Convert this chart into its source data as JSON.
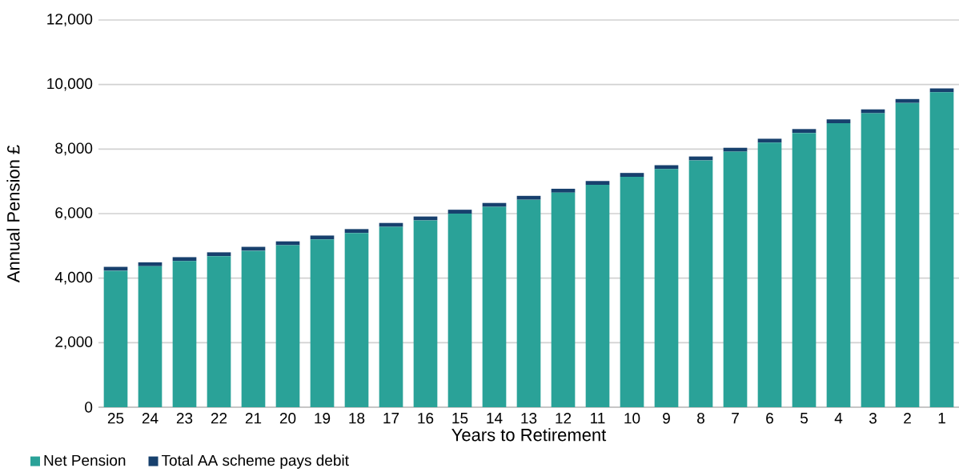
{
  "chart_data": {
    "type": "bar",
    "stacked": true,
    "xlabel": "Years to Retirement",
    "ylabel": "Annual Pension £",
    "categories": [
      "25",
      "24",
      "23",
      "22",
      "21",
      "20",
      "19",
      "18",
      "17",
      "16",
      "15",
      "14",
      "13",
      "12",
      "11",
      "10",
      "9",
      "8",
      "7",
      "6",
      "5",
      "4",
      "3",
      "2",
      "1"
    ],
    "series": [
      {
        "name": "Net Pension",
        "color": "#2aa298",
        "values": [
          4230,
          4370,
          4530,
          4680,
          4850,
          5020,
          5200,
          5400,
          5590,
          5790,
          6000,
          6210,
          6430,
          6650,
          6890,
          7140,
          7380,
          7650,
          7920,
          8200,
          8500,
          8800,
          9110,
          9430,
          9760
        ]
      },
      {
        "name": "Total AA scheme pays debit",
        "color": "#17406d",
        "values": [
          120,
          120,
          120,
          120,
          120,
          120,
          120,
          120,
          120,
          120,
          120,
          120,
          120,
          120,
          120,
          120,
          120,
          120,
          120,
          120,
          120,
          120,
          120,
          120,
          120
        ]
      }
    ],
    "ylim": [
      0,
      12000
    ],
    "yticks": [
      {
        "value": 0,
        "label": "0"
      },
      {
        "value": 2000,
        "label": "2,000"
      },
      {
        "value": 4000,
        "label": "4,000"
      },
      {
        "value": 6000,
        "label": "6,000"
      },
      {
        "value": 8000,
        "label": "8,000"
      },
      {
        "value": 10000,
        "label": "10,000"
      },
      {
        "value": 12000,
        "label": "12,000"
      }
    ],
    "grid": "y",
    "legend": "bottom left"
  }
}
